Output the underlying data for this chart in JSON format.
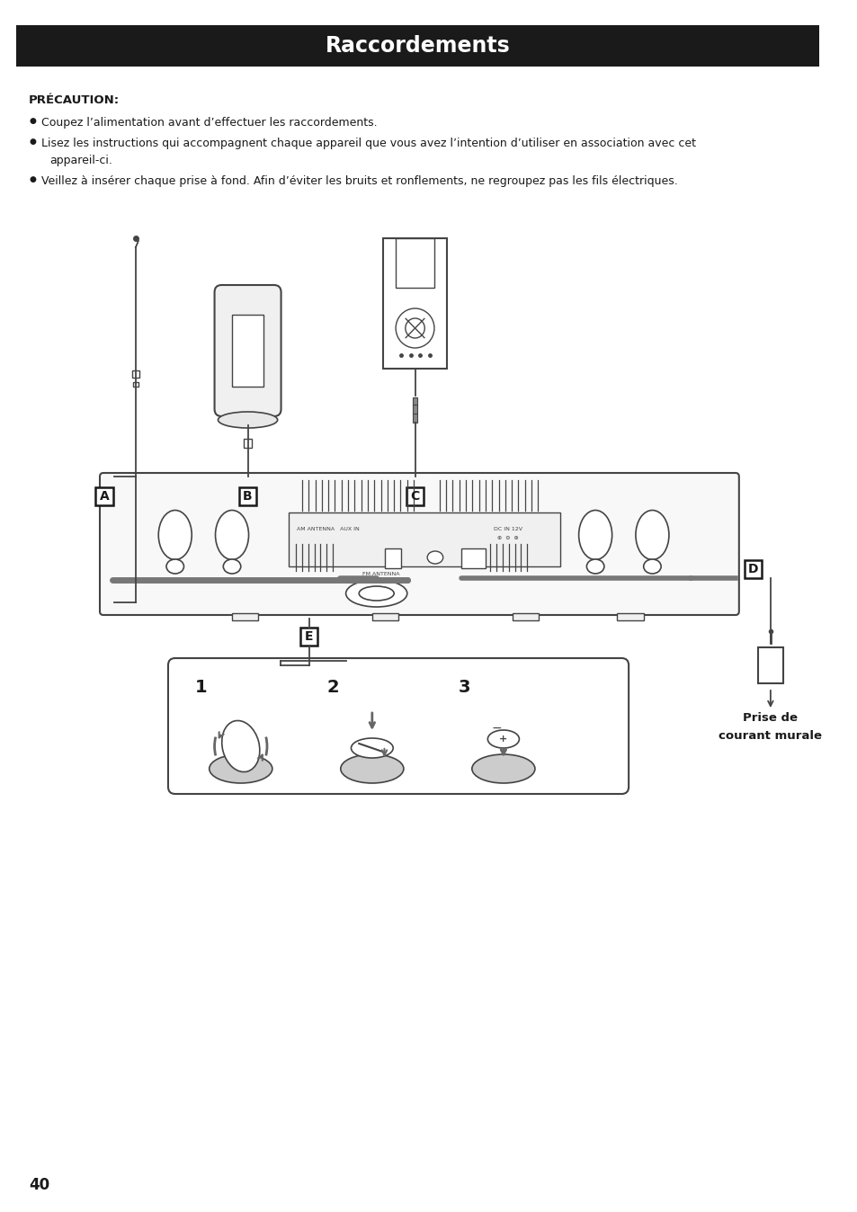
{
  "title": "Raccordements",
  "title_bg": "#1a1a1a",
  "title_color": "#ffffff",
  "title_fontsize": 17,
  "precaution_label": "PRÉCAUTION:",
  "bullet1": "Coupez l’alimentation avant d’effectuer les raccordements.",
  "bullet2_line1": "Lisez les instructions qui accompagnent chaque appareil que vous avez l’intention d’utiliser en association avec cet",
  "bullet2_line2": "appareil-ci.",
  "bullet3": "Veillez à insérer chaque prise à fond. Afin d’éviter les bruits et ronflements, ne regroupez pas les fils électriques.",
  "label_A": "A",
  "label_B": "B",
  "label_C": "C",
  "label_D": "D",
  "label_E": "E",
  "label_prise_line1": "Prise de",
  "label_prise_line2": "courant murale",
  "page_number": "40",
  "bg_color": "#ffffff",
  "text_color": "#1a1a1a",
  "body_fontsize": 9.0,
  "diagram_line_color": "#444444",
  "thick_line_color": "#777777",
  "lc": "#444444"
}
